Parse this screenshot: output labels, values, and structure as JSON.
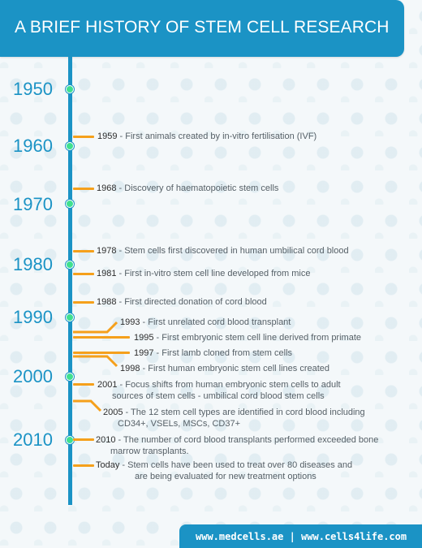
{
  "header": {
    "title": "A BRIEF HISTORY OF STEM CELL RESEARCH"
  },
  "decades": [
    "1950",
    "1960",
    "1970",
    "1980",
    "1990",
    "2000",
    "2010"
  ],
  "events": [
    {
      "year": "1959",
      "text": " - First animals created by in-vitro fertilisation (IVF)"
    },
    {
      "year": "1968",
      "text": " - Discovery of haematopoietic stem cells"
    },
    {
      "year": "1978",
      "text": " - Stem cells first discovered in human umbilical cord blood"
    },
    {
      "year": "1981",
      "text": " - First in-vitro stem cell line developed from mice"
    },
    {
      "year": "1988",
      "text": " - First directed donation of cord blood"
    },
    {
      "year": "1993",
      "text": " - First unrelated cord blood transplant"
    },
    {
      "year": "1995",
      "text": " - First embryonic stem cell line derived from primate"
    },
    {
      "year": "1997",
      "text": " - First lamb cloned from stem cells"
    },
    {
      "year": "1998",
      "text": " - First human embryonic stem cell lines created"
    },
    {
      "year": "2001",
      "text": " - Focus shifts from human embryonic stem cells to adult",
      "cont": "sources of stem cells - umbilical cord blood stem cells"
    },
    {
      "year": "2005",
      "text": " - The 12 stem cell types are identified in cord blood including",
      "cont": "CD34+, VSELs, MSCs, CD37+"
    },
    {
      "year": "2010",
      "text": " - The number of cord blood transplants performed exceeded bone",
      "cont": "marrow transplants."
    },
    {
      "year": "Today",
      "text": " - Stem cells have been used to treat over 80 diseases and",
      "cont": "are being evaluated for new treatment options"
    }
  ],
  "footer": {
    "links": "www.medcells.ae | www.cells4life.com"
  },
  "colors": {
    "accent": "#1b93c5",
    "connector": "#f5a01b",
    "marker": "#3fe08f"
  }
}
